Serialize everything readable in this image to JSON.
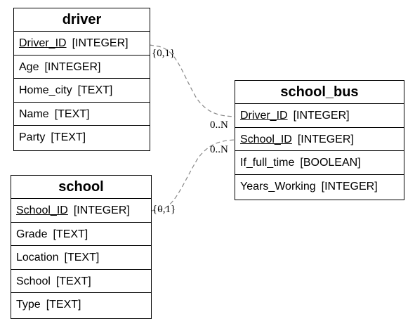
{
  "entities": {
    "driver": {
      "title": "driver",
      "attributes": [
        {
          "name": "Driver_ID",
          "type": "[INTEGER]",
          "pk": true
        },
        {
          "name": "Age",
          "type": "[INTEGER]",
          "pk": false
        },
        {
          "name": "Home_city",
          "type": "[TEXT]",
          "pk": false
        },
        {
          "name": "Name",
          "type": "[TEXT]",
          "pk": false
        },
        {
          "name": "Party",
          "type": "[TEXT]",
          "pk": false
        }
      ]
    },
    "school": {
      "title": "school",
      "attributes": [
        {
          "name": "School_ID",
          "type": "[INTEGER]",
          "pk": true
        },
        {
          "name": "Grade",
          "type": "[TEXT]",
          "pk": false
        },
        {
          "name": "Location",
          "type": "[TEXT]",
          "pk": false
        },
        {
          "name": "School",
          "type": "[TEXT]",
          "pk": false
        },
        {
          "name": "Type",
          "type": "[TEXT]",
          "pk": false
        }
      ]
    },
    "school_bus": {
      "title": "school_bus",
      "attributes": [
        {
          "name": "Driver_ID",
          "type": "[INTEGER]",
          "pk": true
        },
        {
          "name": "School_ID",
          "type": "[INTEGER]",
          "pk": true
        },
        {
          "name": "If_full_time",
          "type": "[BOOLEAN]",
          "pk": false
        },
        {
          "name": "Years_Working",
          "type": "[INTEGER]",
          "pk": false
        }
      ]
    }
  },
  "relationships": [
    {
      "from": "driver.Driver_ID",
      "to": "school_bus.Driver_ID",
      "from_cardinality": "{0,1}",
      "to_cardinality": "0..N"
    },
    {
      "from": "school.School_ID",
      "to": "school_bus.School_ID",
      "from_cardinality": "{0,1}",
      "to_cardinality": "0..N"
    }
  ],
  "colors": {
    "connector": "#888888",
    "border": "#000000",
    "background": "#ffffff"
  }
}
